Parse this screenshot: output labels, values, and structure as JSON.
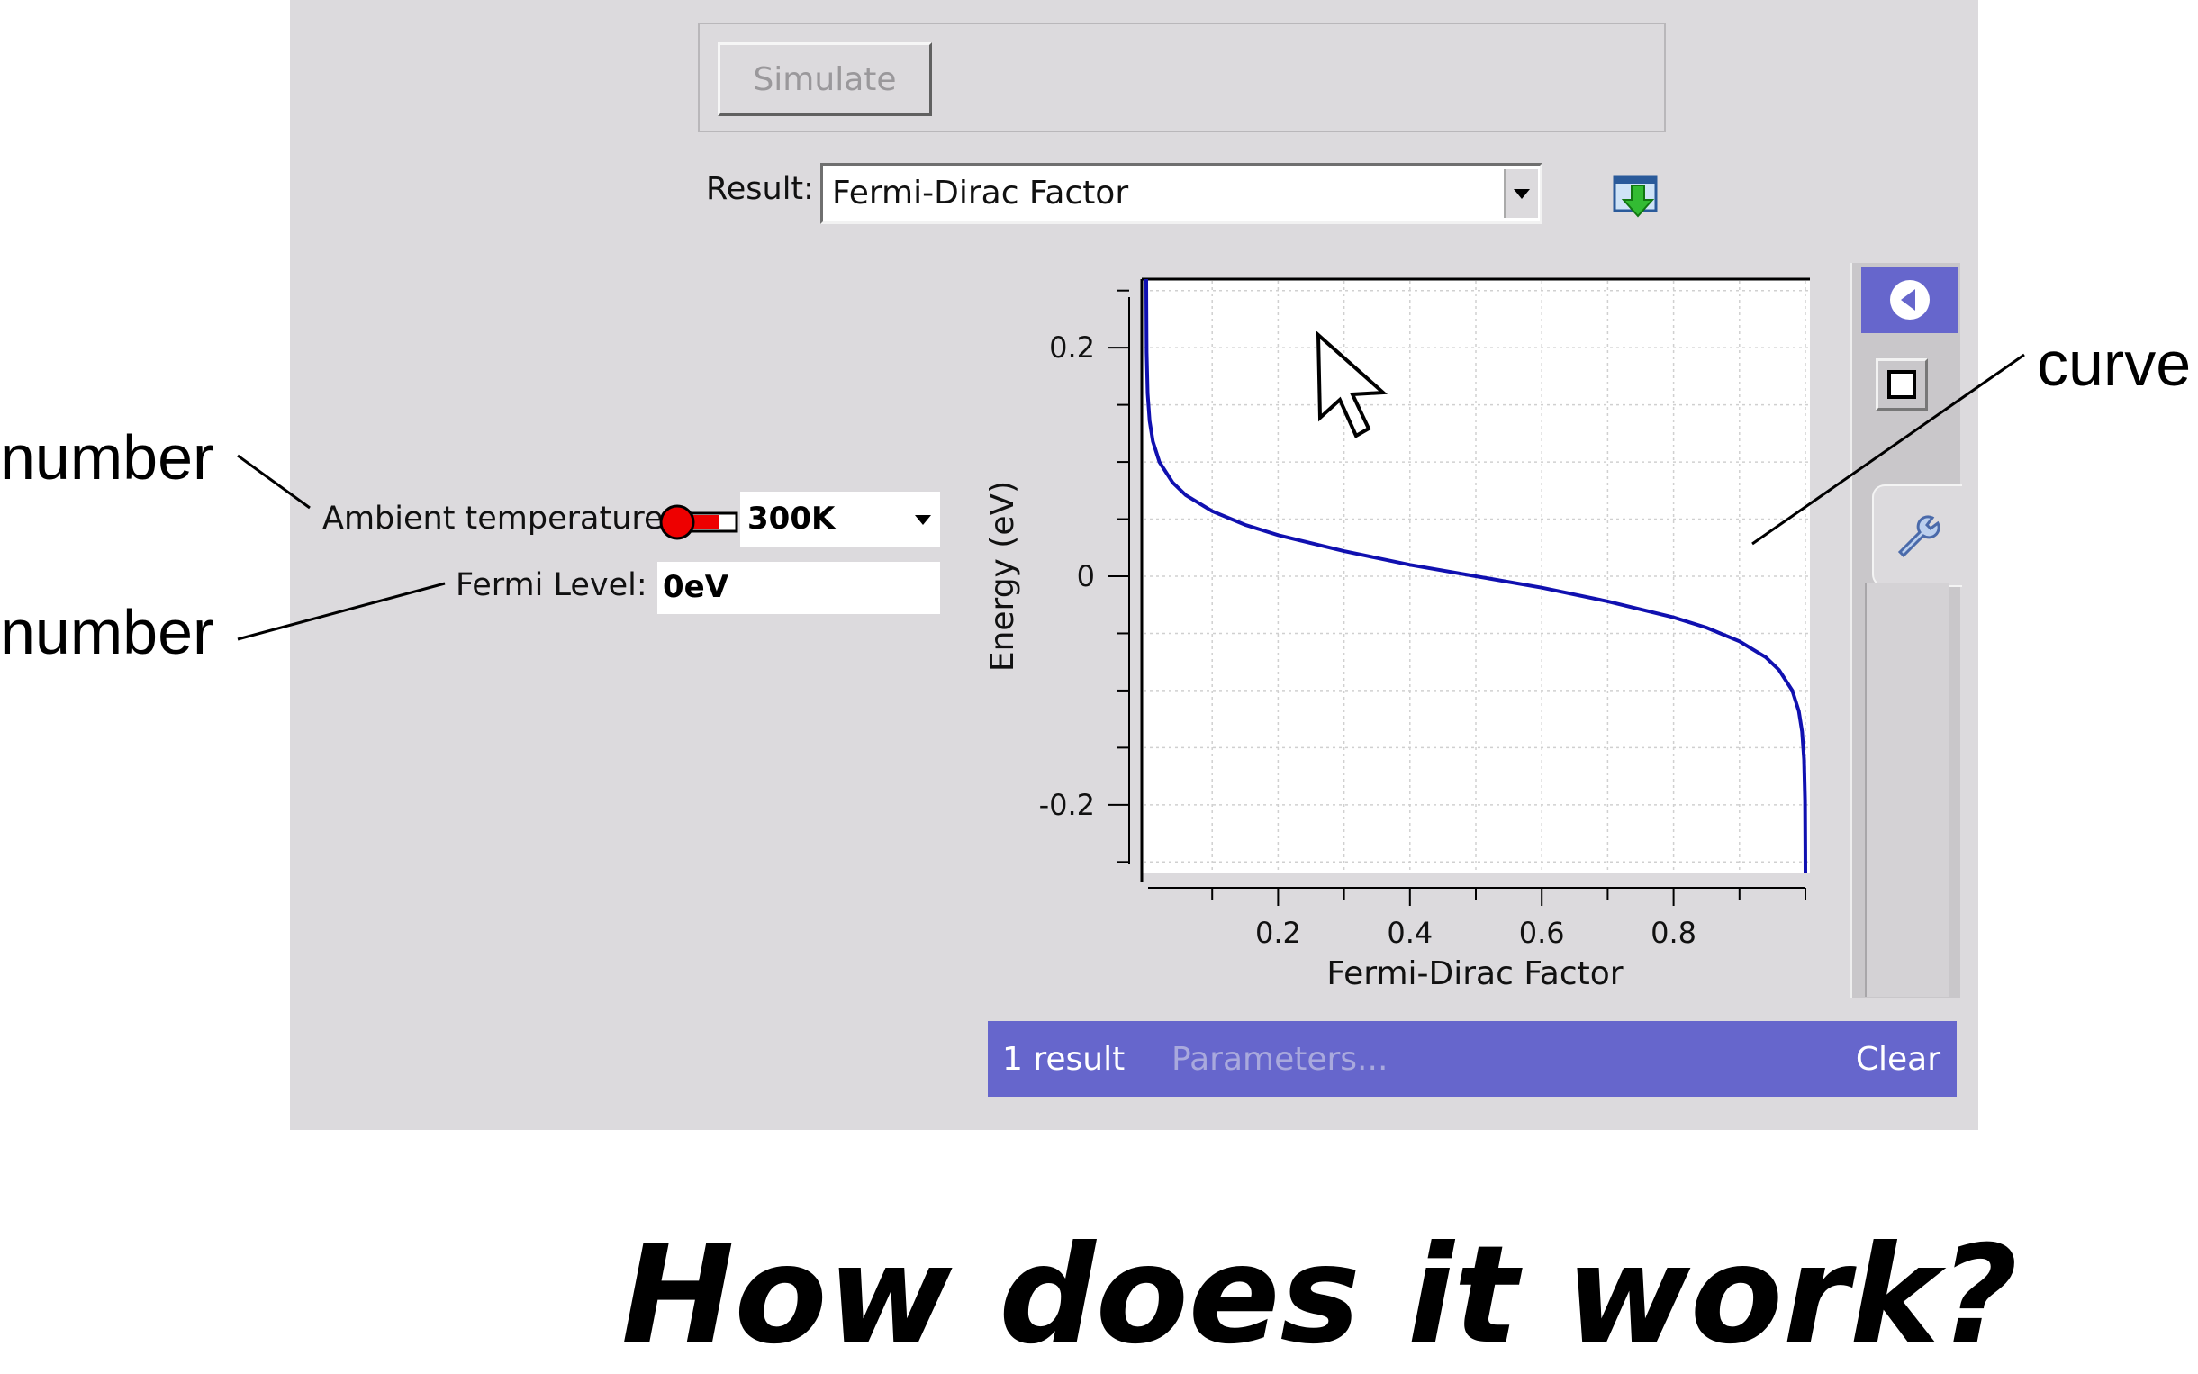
{
  "simulate_label": "Simulate",
  "result": {
    "label": "Result:",
    "selected": "Fermi-Dirac Factor"
  },
  "inputs": {
    "ambient_label": "Ambient temperature:",
    "ambient_value": "300K",
    "fermi_label": "Fermi Level:",
    "fermi_value": "0eV"
  },
  "status": {
    "count": "1 result",
    "parameters": "Parameters...",
    "clear": "Clear"
  },
  "annotations": {
    "number_1": "number",
    "number_2": "number",
    "curve": "curve"
  },
  "heading": "How does it work?",
  "icons": [
    "download-icon",
    "back-icon",
    "square-icon",
    "wrench-icon",
    "thermometer-icon",
    "pointer-cursor-icon"
  ],
  "colors": {
    "app_bg": "#dcdadd",
    "accent": "#6666cc",
    "curve": "#1010b0",
    "thermo": "#ee0000"
  },
  "chart_data": {
    "type": "line",
    "xlabel": "Fermi-Dirac Factor",
    "ylabel": "Energy (eV)",
    "xlim": [
      0,
      1
    ],
    "ylim": [
      -0.26,
      0.26
    ],
    "xticks": [
      0.2,
      0.4,
      0.6,
      0.8
    ],
    "xtick_labels": [
      "0.2",
      "0.4",
      "0.6",
      "0.8"
    ],
    "yticks": [
      -0.2,
      0,
      0.2
    ],
    "ytick_labels": [
      "-0.2",
      "0",
      "0.2"
    ],
    "grid": true,
    "series": [
      {
        "x": [
          4e-05,
          0.0001,
          0.0005,
          0.002,
          0.005,
          0.01,
          0.02,
          0.04,
          0.06,
          0.1,
          0.15,
          0.2,
          0.3,
          0.4,
          0.5,
          0.6,
          0.7,
          0.8,
          0.85,
          0.9,
          0.94,
          0.96,
          0.98,
          0.99,
          0.995,
          0.998,
          0.9995,
          0.9999,
          0.99996
        ],
        "y": [
          0.26,
          0.238,
          0.196,
          0.16,
          0.136,
          0.118,
          0.1,
          0.082,
          0.071,
          0.057,
          0.045,
          0.036,
          0.022,
          0.01,
          0.0,
          -0.01,
          -0.022,
          -0.036,
          -0.045,
          -0.057,
          -0.071,
          -0.082,
          -0.1,
          -0.118,
          -0.136,
          -0.16,
          -0.196,
          -0.238,
          -0.26
        ]
      }
    ]
  }
}
